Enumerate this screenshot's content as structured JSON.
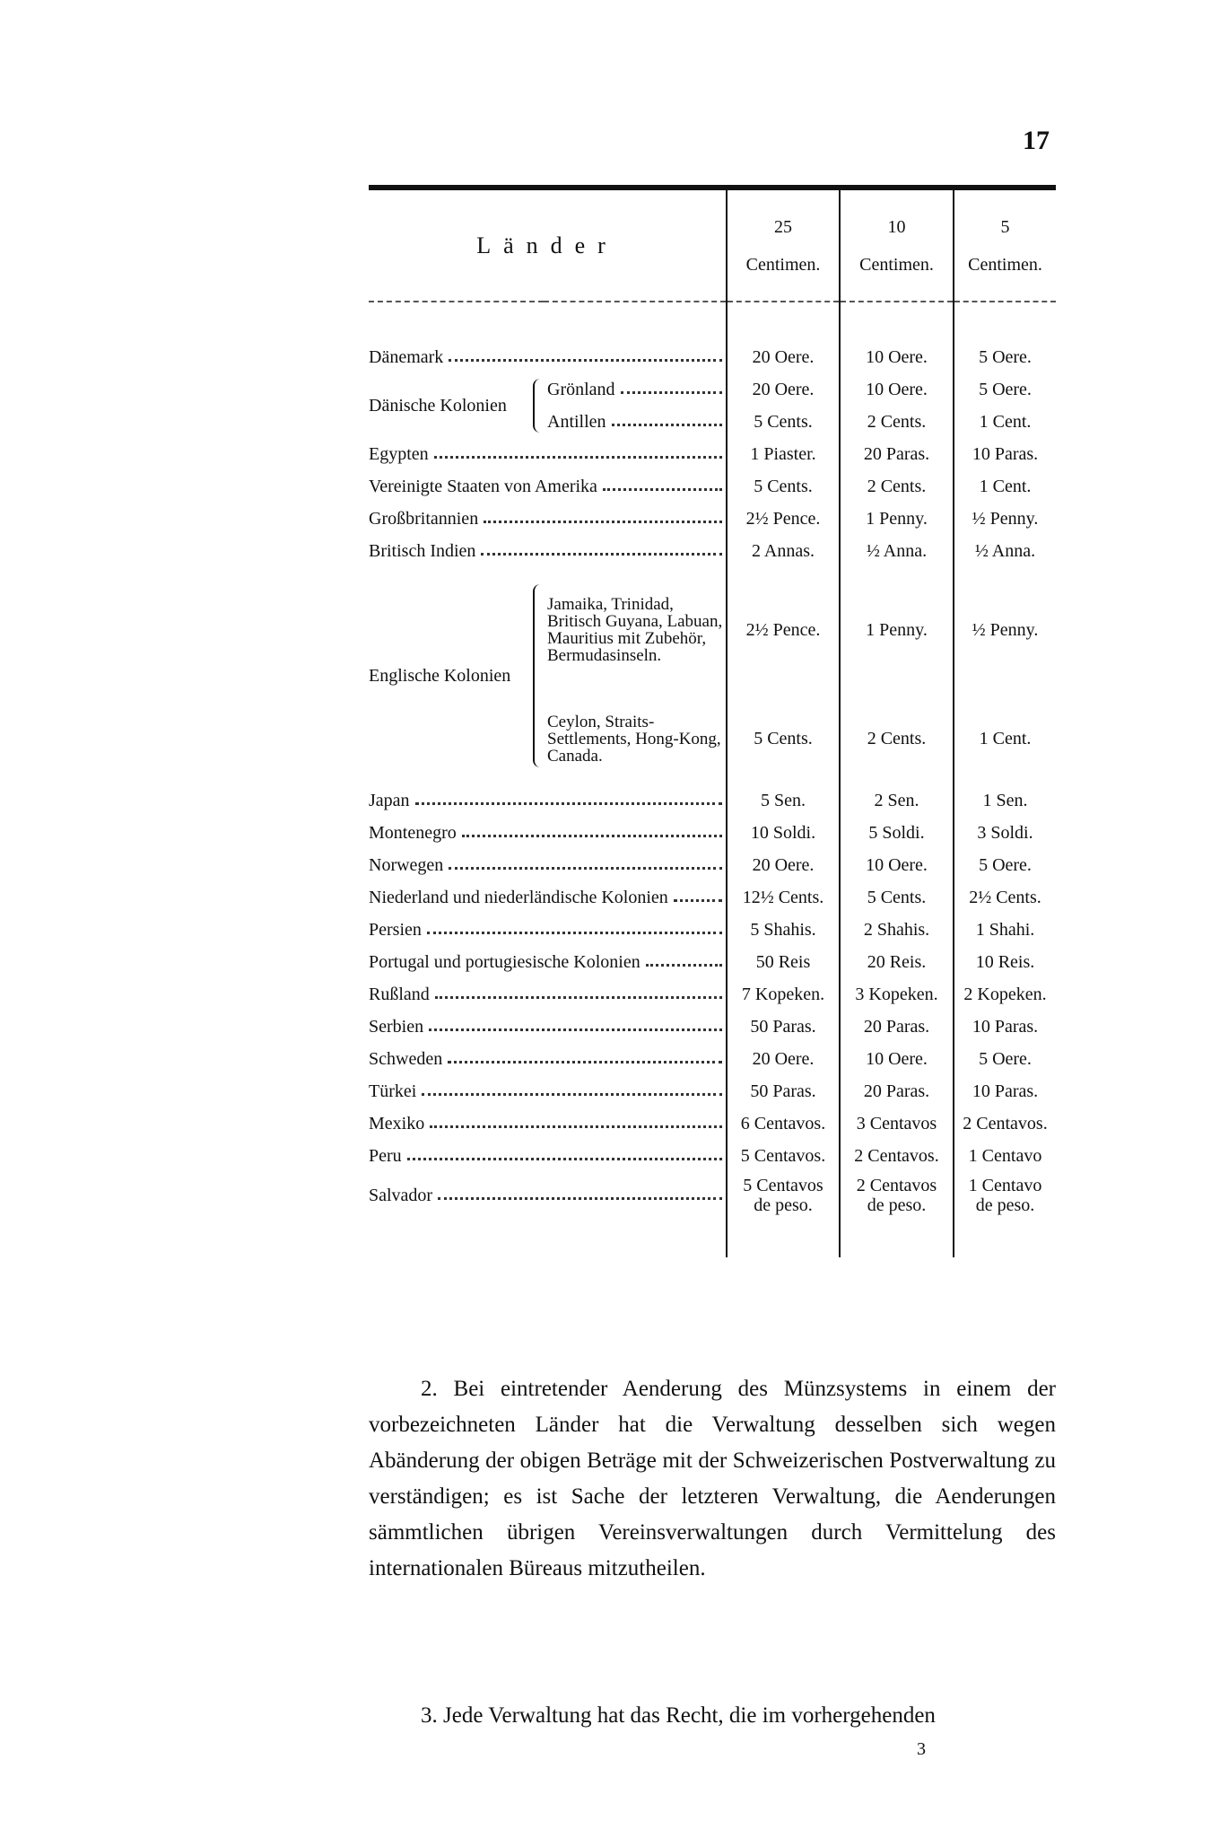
{
  "page_number": "17",
  "table": {
    "header": {
      "country": "Länder",
      "columns": [
        {
          "value": "25",
          "unit": "Centimen."
        },
        {
          "value": "10",
          "unit": "Centimen."
        },
        {
          "value": "5",
          "unit": "Centimen."
        }
      ]
    },
    "rows": [
      {
        "label": "Dänemark",
        "cells": [
          "20 Oere.",
          "10 Oere.",
          "5 Oere."
        ]
      },
      {
        "label": "Dänische Kolonien",
        "rows": [
          {
            "label": "Grönland",
            "cells": [
              "20 Oere.",
              "10 Oere.",
              "5 Oere."
            ]
          },
          {
            "label": "Antillen",
            "cells": [
              "5 Cents.",
              "2 Cents.",
              "1 Cent."
            ]
          }
        ]
      },
      {
        "label": "Egypten",
        "cells": [
          "1 Piaster.",
          "20 Paras.",
          "10 Paras."
        ]
      },
      {
        "label": "Vereinigte Staaten von Amerika",
        "cells": [
          "5 Cents.",
          "2 Cents.",
          "1 Cent."
        ]
      },
      {
        "label": "Großbritannien",
        "cells": [
          "2½ Pence.",
          "1 Penny.",
          "½ Penny."
        ]
      },
      {
        "label": "Britisch Indien",
        "cells": [
          "2 Annas.",
          "½ Anna.",
          "½ Anna."
        ]
      },
      {
        "label": "Englische Kolonien",
        "rows": [
          {
            "label": "Jamaika, Trinidad, Britisch Guyana, Labuan, Mauritius mit Zubehör, Bermudasinseln.",
            "cells": [
              "2½ Pence.",
              "1 Penny.",
              "½ Penny."
            ]
          },
          {
            "label": "Ceylon, Straits-Settlements, Hong-Kong, Canada.",
            "cells": [
              "5 Cents.",
              "2 Cents.",
              "1 Cent."
            ]
          }
        ]
      },
      {
        "label": "Japan",
        "cells": [
          "5 Sen.",
          "2 Sen.",
          "1 Sen."
        ]
      },
      {
        "label": "Montenegro",
        "cells": [
          "10 Soldi.",
          "5 Soldi.",
          "3 Soldi."
        ]
      },
      {
        "label": "Norwegen",
        "cells": [
          "20 Oere.",
          "10 Oere.",
          "5 Oere."
        ]
      },
      {
        "label": "Niederland und niederländische Kolonien",
        "cells": [
          "12½ Cents.",
          "5 Cents.",
          "2½ Cents."
        ]
      },
      {
        "label": "Persien",
        "cells": [
          "5 Shahis.",
          "2 Shahis.",
          "1 Shahi."
        ]
      },
      {
        "label": "Portugal und portugiesische Kolonien",
        "cells": [
          "50 Reis",
          "20 Reis.",
          "10 Reis."
        ]
      },
      {
        "label": "Rußland",
        "cells": [
          "7 Kopeken.",
          "3 Kopeken.",
          "2 Kopeken."
        ]
      },
      {
        "label": "Serbien",
        "cells": [
          "50 Paras.",
          "20 Paras.",
          "10 Paras."
        ]
      },
      {
        "label": "Schweden",
        "cells": [
          "20 Oere.",
          "10 Oere.",
          "5 Oere."
        ]
      },
      {
        "label": "Türkei",
        "cells": [
          "50 Paras.",
          "20 Paras.",
          "10 Paras."
        ]
      },
      {
        "label": "Mexiko",
        "cells": [
          "6 Centavos.",
          "3 Centavos",
          "2 Centavos."
        ]
      },
      {
        "label": "Peru",
        "cells": [
          "5 Centavos.",
          "2 Centavos.",
          "1 Centavo"
        ]
      },
      {
        "label": "Salvador",
        "cells": [
          "5 Centavos de peso.",
          "2 Centavos de peso.",
          "1 Centavo de peso."
        ]
      }
    ]
  },
  "paragraphs": [
    "2. Bei eintretender Aenderung des Münzsystems in einem der vorbezeichneten Länder hat die Verwaltung desselben sich wegen Abänderung der obigen Beträge mit der Schweizerischen Postverwaltung zu verständigen; es ist Sache der letzteren Verwaltung, die Aenderungen sämmtlichen übrigen Vereinsverwaltungen durch Vermittelung des internationalen Büreaus mitzutheilen.",
    "3. Jede Verwaltung hat das Recht, die im vorhergehenden"
  ],
  "footer_mark": "3"
}
